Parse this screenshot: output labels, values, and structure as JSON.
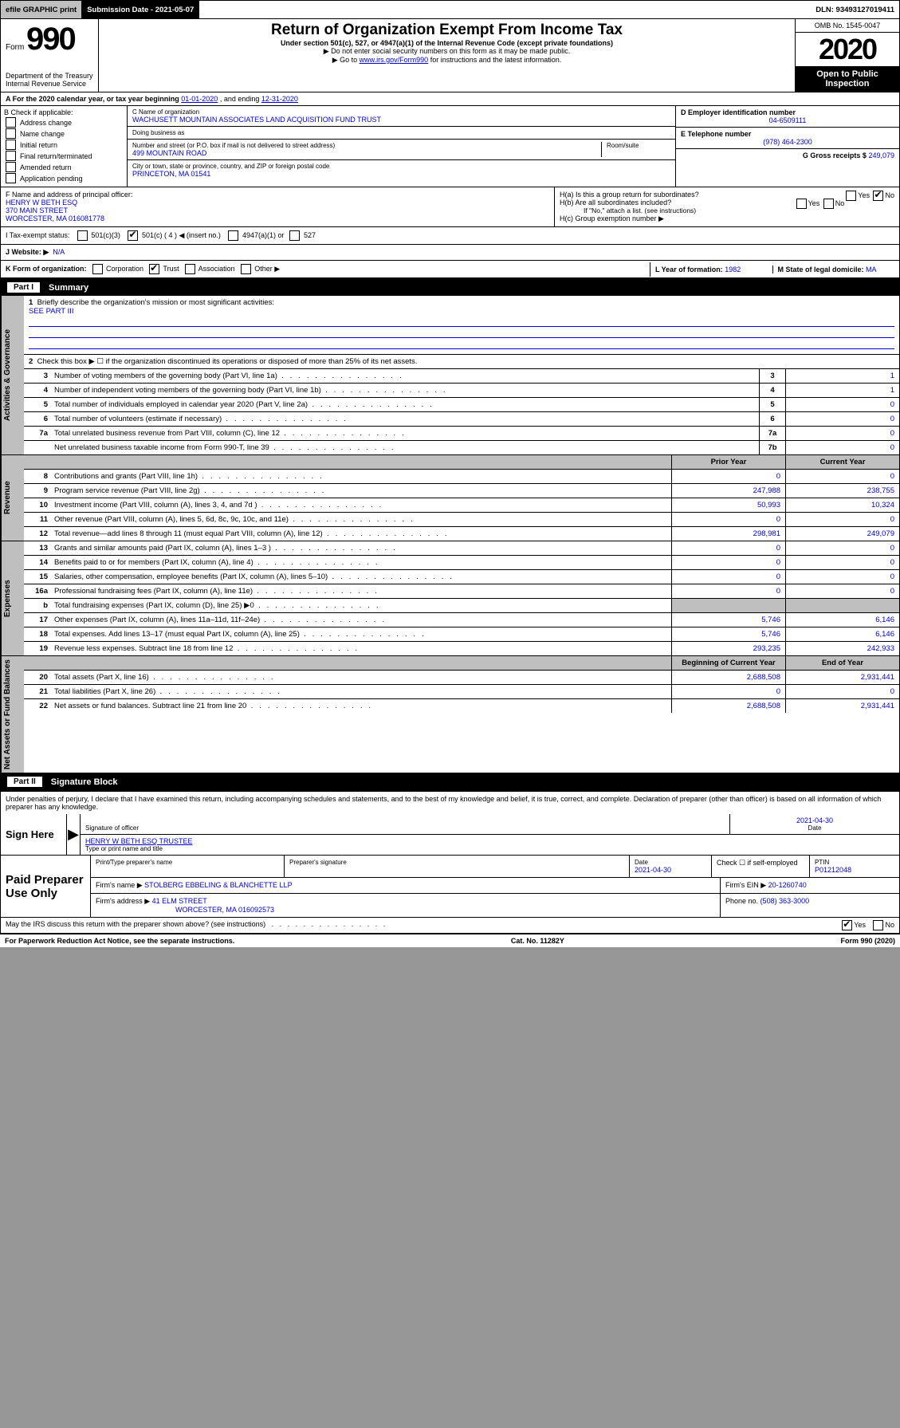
{
  "topbar": {
    "efile": "efile GRAPHIC print",
    "submission_label": "Submission Date - 2021-05-07",
    "dln": "DLN: 93493127019411"
  },
  "header": {
    "form_word": "Form",
    "form_number": "990",
    "title": "Return of Organization Exempt From Income Tax",
    "subtitle": "Under section 501(c), 527, or 4947(a)(1) of the Internal Revenue Code (except private foundations)",
    "note1": "▶ Do not enter social security numbers on this form as it may be made public.",
    "note2_pre": "▶ Go to ",
    "note2_link": "www.irs.gov/Form990",
    "note2_post": " for instructions and the latest information.",
    "omb": "OMB No. 1545-0047",
    "year": "2020",
    "badge": "Open to Public Inspection",
    "dept1": "Department of the Treasury",
    "dept2": "Internal Revenue Service"
  },
  "lineA": {
    "text_pre": "A  For the 2020 calendar year, or tax year beginning ",
    "begin": "01-01-2020",
    "mid": "   , and ending ",
    "end": "12-31-2020"
  },
  "colB": {
    "header": "B Check if applicable:",
    "items": [
      "Address change",
      "Name change",
      "Initial return",
      "Final return/terminated",
      "Amended return",
      "Application pending"
    ]
  },
  "colC": {
    "name_label": "C Name of organization",
    "name": "WACHUSETT MOUNTAIN ASSOCIATES LAND ACQUISITION FUND TRUST",
    "dba_label": "Doing business as",
    "addr_label": "Number and street (or P.O. box if mail is not delivered to street address)",
    "addr": "499 MOUNTAIN ROAD",
    "room_label": "Room/suite",
    "city_label": "City or town, state or province, country, and ZIP or foreign postal code",
    "city": "PRINCETON, MA  01541"
  },
  "colRight": {
    "ein_label": "D Employer identification number",
    "ein": "04-6509111",
    "tel_label": "E Telephone number",
    "tel": "(978) 464-2300",
    "gross_label": "G Gross receipts $",
    "gross": "249,079"
  },
  "secondGrid": {
    "f_label": "F  Name and address of principal officer:",
    "f_name": "HENRY W BETH ESQ",
    "f_addr1": "370 MAIN STREET",
    "f_addr2": "WORCESTER, MA  016081778",
    "ha": "H(a)  Is this a group return for subordinates?",
    "ha_yes": "Yes",
    "ha_no": "No",
    "hb": "H(b)  Are all subordinates included?",
    "hb_note": "If \"No,\" attach a list. (see instructions)",
    "hc": "H(c)  Group exemption number ▶",
    "i_label": "I   Tax-exempt status:",
    "i_501c3": "501(c)(3)",
    "i_501c": "501(c) ( 4 ) ◀ (insert no.)",
    "i_4947": "4947(a)(1) or",
    "i_527": "527",
    "j_label": "J   Website: ▶",
    "j_val": "N/A"
  },
  "rowK": {
    "label": "K Form of organization:",
    "corp": "Corporation",
    "trust": "Trust",
    "assoc": "Association",
    "other": "Other ▶",
    "l_label": "L Year of formation:",
    "l_val": "1982",
    "m_label": "M State of legal domicile:",
    "m_val": "MA"
  },
  "part1": {
    "tab": "Part I",
    "title": "Summary",
    "q1": "Briefly describe the organization's mission or most significant activities:",
    "q1_ans": "SEE PART III",
    "q2": "Check this box ▶ ☐  if the organization discontinued its operations or disposed of more than 25% of its net assets.",
    "rows_ag": [
      {
        "n": "3",
        "d": "Number of voting members of the governing body (Part VI, line 1a)",
        "box": "3",
        "v": "1"
      },
      {
        "n": "4",
        "d": "Number of independent voting members of the governing body (Part VI, line 1b)",
        "box": "4",
        "v": "1"
      },
      {
        "n": "5",
        "d": "Total number of individuals employed in calendar year 2020 (Part V, line 2a)",
        "box": "5",
        "v": "0"
      },
      {
        "n": "6",
        "d": "Total number of volunteers (estimate if necessary)",
        "box": "6",
        "v": "0"
      },
      {
        "n": "7a",
        "d": "Total unrelated business revenue from Part VIII, column (C), line 12",
        "box": "7a",
        "v": "0"
      },
      {
        "n": "",
        "d": "Net unrelated business taxable income from Form 990-T, line 39",
        "box": "7b",
        "v": "0"
      }
    ],
    "head_prior": "Prior Year",
    "head_current": "Current Year",
    "head_bcy": "Beginning of Current Year",
    "head_eoy": "End of Year",
    "revenue": [
      {
        "n": "8",
        "d": "Contributions and grants (Part VIII, line 1h)",
        "p": "0",
        "c": "0"
      },
      {
        "n": "9",
        "d": "Program service revenue (Part VIII, line 2g)",
        "p": "247,988",
        "c": "238,755"
      },
      {
        "n": "10",
        "d": "Investment income (Part VIII, column (A), lines 3, 4, and 7d )",
        "p": "50,993",
        "c": "10,324"
      },
      {
        "n": "11",
        "d": "Other revenue (Part VIII, column (A), lines 5, 6d, 8c, 9c, 10c, and 11e)",
        "p": "0",
        "c": "0"
      },
      {
        "n": "12",
        "d": "Total revenue—add lines 8 through 11 (must equal Part VIII, column (A), line 12)",
        "p": "298,981",
        "c": "249,079"
      }
    ],
    "expenses": [
      {
        "n": "13",
        "d": "Grants and similar amounts paid (Part IX, column (A), lines 1–3 )",
        "p": "0",
        "c": "0"
      },
      {
        "n": "14",
        "d": "Benefits paid to or for members (Part IX, column (A), line 4)",
        "p": "0",
        "c": "0"
      },
      {
        "n": "15",
        "d": "Salaries, other compensation, employee benefits (Part IX, column (A), lines 5–10)",
        "p": "0",
        "c": "0"
      },
      {
        "n": "16a",
        "d": "Professional fundraising fees (Part IX, column (A), line 11e)",
        "p": "0",
        "c": "0"
      },
      {
        "n": "b",
        "d": "Total fundraising expenses (Part IX, column (D), line 25) ▶0",
        "p": "",
        "c": "",
        "grey": true
      },
      {
        "n": "17",
        "d": "Other expenses (Part IX, column (A), lines 11a–11d, 11f–24e)",
        "p": "5,746",
        "c": "6,146"
      },
      {
        "n": "18",
        "d": "Total expenses. Add lines 13–17 (must equal Part IX, column (A), line 25)",
        "p": "5,746",
        "c": "6,146"
      },
      {
        "n": "19",
        "d": "Revenue less expenses. Subtract line 18 from line 12",
        "p": "293,235",
        "c": "242,933"
      }
    ],
    "netassets": [
      {
        "n": "20",
        "d": "Total assets (Part X, line 16)",
        "p": "2,688,508",
        "c": "2,931,441"
      },
      {
        "n": "21",
        "d": "Total liabilities (Part X, line 26)",
        "p": "0",
        "c": "0"
      },
      {
        "n": "22",
        "d": "Net assets or fund balances. Subtract line 21 from line 20",
        "p": "2,688,508",
        "c": "2,931,441"
      }
    ],
    "side_labels": {
      "ag": "Activities & Governance",
      "rev": "Revenue",
      "exp": "Expenses",
      "na": "Net Assets or Fund Balances"
    }
  },
  "part2": {
    "tab": "Part II",
    "title": "Signature Block",
    "decl": "Under penalties of perjury, I declare that I have examined this return, including accompanying schedules and statements, and to the best of my knowledge and belief, it is true, correct, and complete. Declaration of preparer (other than officer) is based on all information of which preparer has any knowledge.",
    "sign_here": "Sign Here",
    "sig_officer_label": "Signature of officer",
    "date1": "2021-04-30",
    "date_label": "Date",
    "officer_nametitle": "HENRY W BETH ESQ  TRUSTEE",
    "type_label": "Type or print name and title"
  },
  "paidPrep": {
    "side": "Paid Preparer Use Only",
    "h1": "Print/Type preparer's name",
    "h2": "Preparer's signature",
    "h3_label": "Date",
    "h3": "2021-04-30",
    "h4_label": "Check ☐ if self-employed",
    "h5_label": "PTIN",
    "h5": "P01212048",
    "firm_name_label": "Firm's name      ▶",
    "firm_name": "STOLBERG EBBELING & BLANCHETTE LLP",
    "firm_ein_label": "Firm's EIN ▶",
    "firm_ein": "20-1260740",
    "firm_addr_label": "Firm's address ▶",
    "firm_addr1": "41 ELM STREET",
    "firm_addr2": "WORCESTER, MA  016092573",
    "phone_label": "Phone no.",
    "phone": "(508) 363-3000"
  },
  "footer": {
    "discuss": "May the IRS discuss this return with the preparer shown above? (see instructions)",
    "yes": "Yes",
    "no": "No",
    "pra": "For Paperwork Reduction Act Notice, see the separate instructions.",
    "cat": "Cat. No. 11282Y",
    "form": "Form 990 (2020)"
  }
}
